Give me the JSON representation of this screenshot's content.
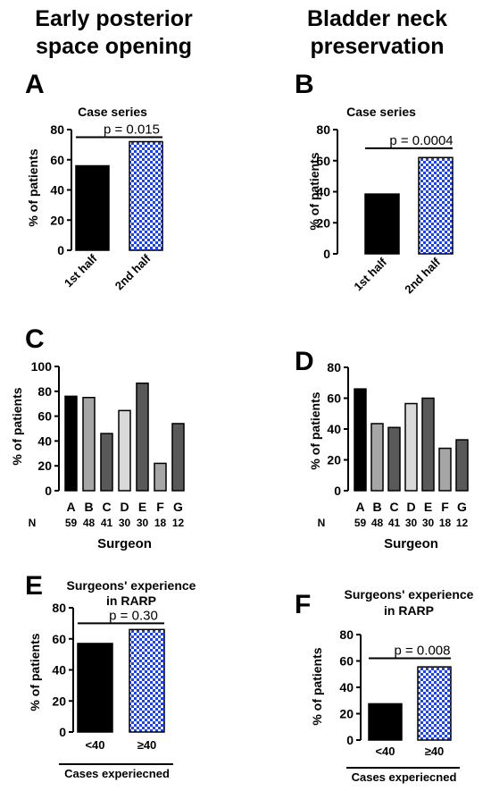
{
  "column_titles": [
    "Early posterior space opening",
    "Bladder neck preservation"
  ],
  "colors": {
    "black": "#000000",
    "blue": "#1a3fff",
    "checker_light": "#ffffff"
  },
  "chart_data": [
    {
      "panel": "A",
      "type": "bar",
      "title": "Case series",
      "ylabel": "% of patients",
      "ylim": [
        0,
        80
      ],
      "yticks": [
        0,
        20,
        40,
        60,
        80
      ],
      "categories": [
        "1st half",
        "2nd half"
      ],
      "values": [
        56,
        72
      ],
      "fills": [
        "black",
        "checker"
      ],
      "rotate_x": true,
      "bracket": {
        "text": "p = 0.015",
        "y": 75
      }
    },
    {
      "panel": "B",
      "type": "bar",
      "title": "Case series",
      "ylabel": "% of patients",
      "ylim": [
        0,
        80
      ],
      "yticks": [
        0,
        20,
        40,
        60,
        80
      ],
      "categories": [
        "1st half",
        "2nd half"
      ],
      "values": [
        38.5,
        62
      ],
      "fills": [
        "black",
        "checker"
      ],
      "rotate_x": true,
      "bracket": {
        "text": "p = 0.0004",
        "y": 68
      }
    },
    {
      "panel": "C",
      "type": "bar",
      "title": "",
      "ylabel": "% of patients",
      "xlabel": "Surgeon",
      "ylim": [
        0,
        100
      ],
      "yticks": [
        0,
        20,
        40,
        60,
        80,
        100
      ],
      "categories": [
        "A",
        "B",
        "C",
        "D",
        "E",
        "F",
        "G"
      ],
      "values": [
        76,
        75,
        46,
        64.5,
        86.5,
        22,
        54
      ],
      "n_label": "N",
      "n_values": [
        "59",
        "48",
        "41",
        "30",
        "30",
        "18",
        "12"
      ],
      "fills": [
        "#000000",
        "#a6a6a6",
        "#595959",
        "#d9d9d9",
        "#595959",
        "#a6a6a6",
        "#595959"
      ]
    },
    {
      "panel": "D",
      "type": "bar",
      "title": "",
      "ylabel": "% of patients",
      "xlabel": "Surgeon",
      "ylim": [
        0,
        80
      ],
      "yticks": [
        0,
        20,
        40,
        60,
        80
      ],
      "categories": [
        "A",
        "B",
        "C",
        "D",
        "E",
        "F",
        "G"
      ],
      "values": [
        66,
        43.5,
        41,
        56.5,
        60,
        27.5,
        33
      ],
      "n_label": "N",
      "n_values": [
        "59",
        "48",
        "41",
        "30",
        "30",
        "18",
        "12"
      ],
      "fills": [
        "#000000",
        "#a6a6a6",
        "#595959",
        "#d9d9d9",
        "#595959",
        "#a6a6a6",
        "#595959"
      ]
    },
    {
      "panel": "E",
      "type": "bar",
      "title": "Surgeons' experience in RARP",
      "ylabel": "% of patients",
      "ylim": [
        0,
        80
      ],
      "yticks": [
        0,
        20,
        40,
        60,
        80
      ],
      "categories": [
        "<40",
        "≥40"
      ],
      "values": [
        57,
        66
      ],
      "fills": [
        "black",
        "checker"
      ],
      "group_label": "Cases experiecned",
      "bracket": {
        "text": "p = 0.30",
        "y": 70
      }
    },
    {
      "panel": "F",
      "type": "bar",
      "title": "Surgeons' experience in RARP",
      "ylabel": "% of patients",
      "ylim": [
        0,
        80
      ],
      "yticks": [
        0,
        20,
        40,
        60,
        80
      ],
      "categories": [
        "<40",
        "≥40"
      ],
      "values": [
        27.5,
        55.5
      ],
      "fills": [
        "black",
        "checker"
      ],
      "group_label": "Cases experiecned",
      "bracket": {
        "text": "p = 0.008",
        "y": 62
      }
    }
  ]
}
